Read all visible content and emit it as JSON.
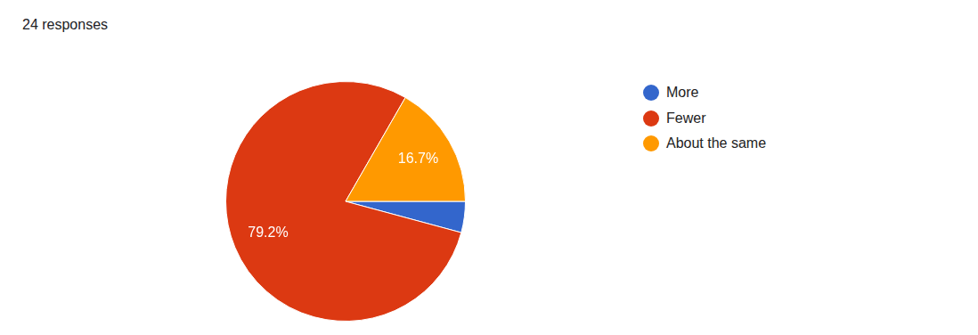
{
  "chart_data": {
    "type": "pie",
    "title": "24 responses",
    "categories": [
      "More",
      "Fewer",
      "About the same"
    ],
    "values": [
      4.2,
      79.2,
      16.7
    ],
    "value_labels": [
      null,
      "79.2%",
      "16.7%"
    ],
    "colors": [
      "#3366cc",
      "#dc3912",
      "#ff9900"
    ],
    "data_labels": true,
    "legend": "right"
  }
}
